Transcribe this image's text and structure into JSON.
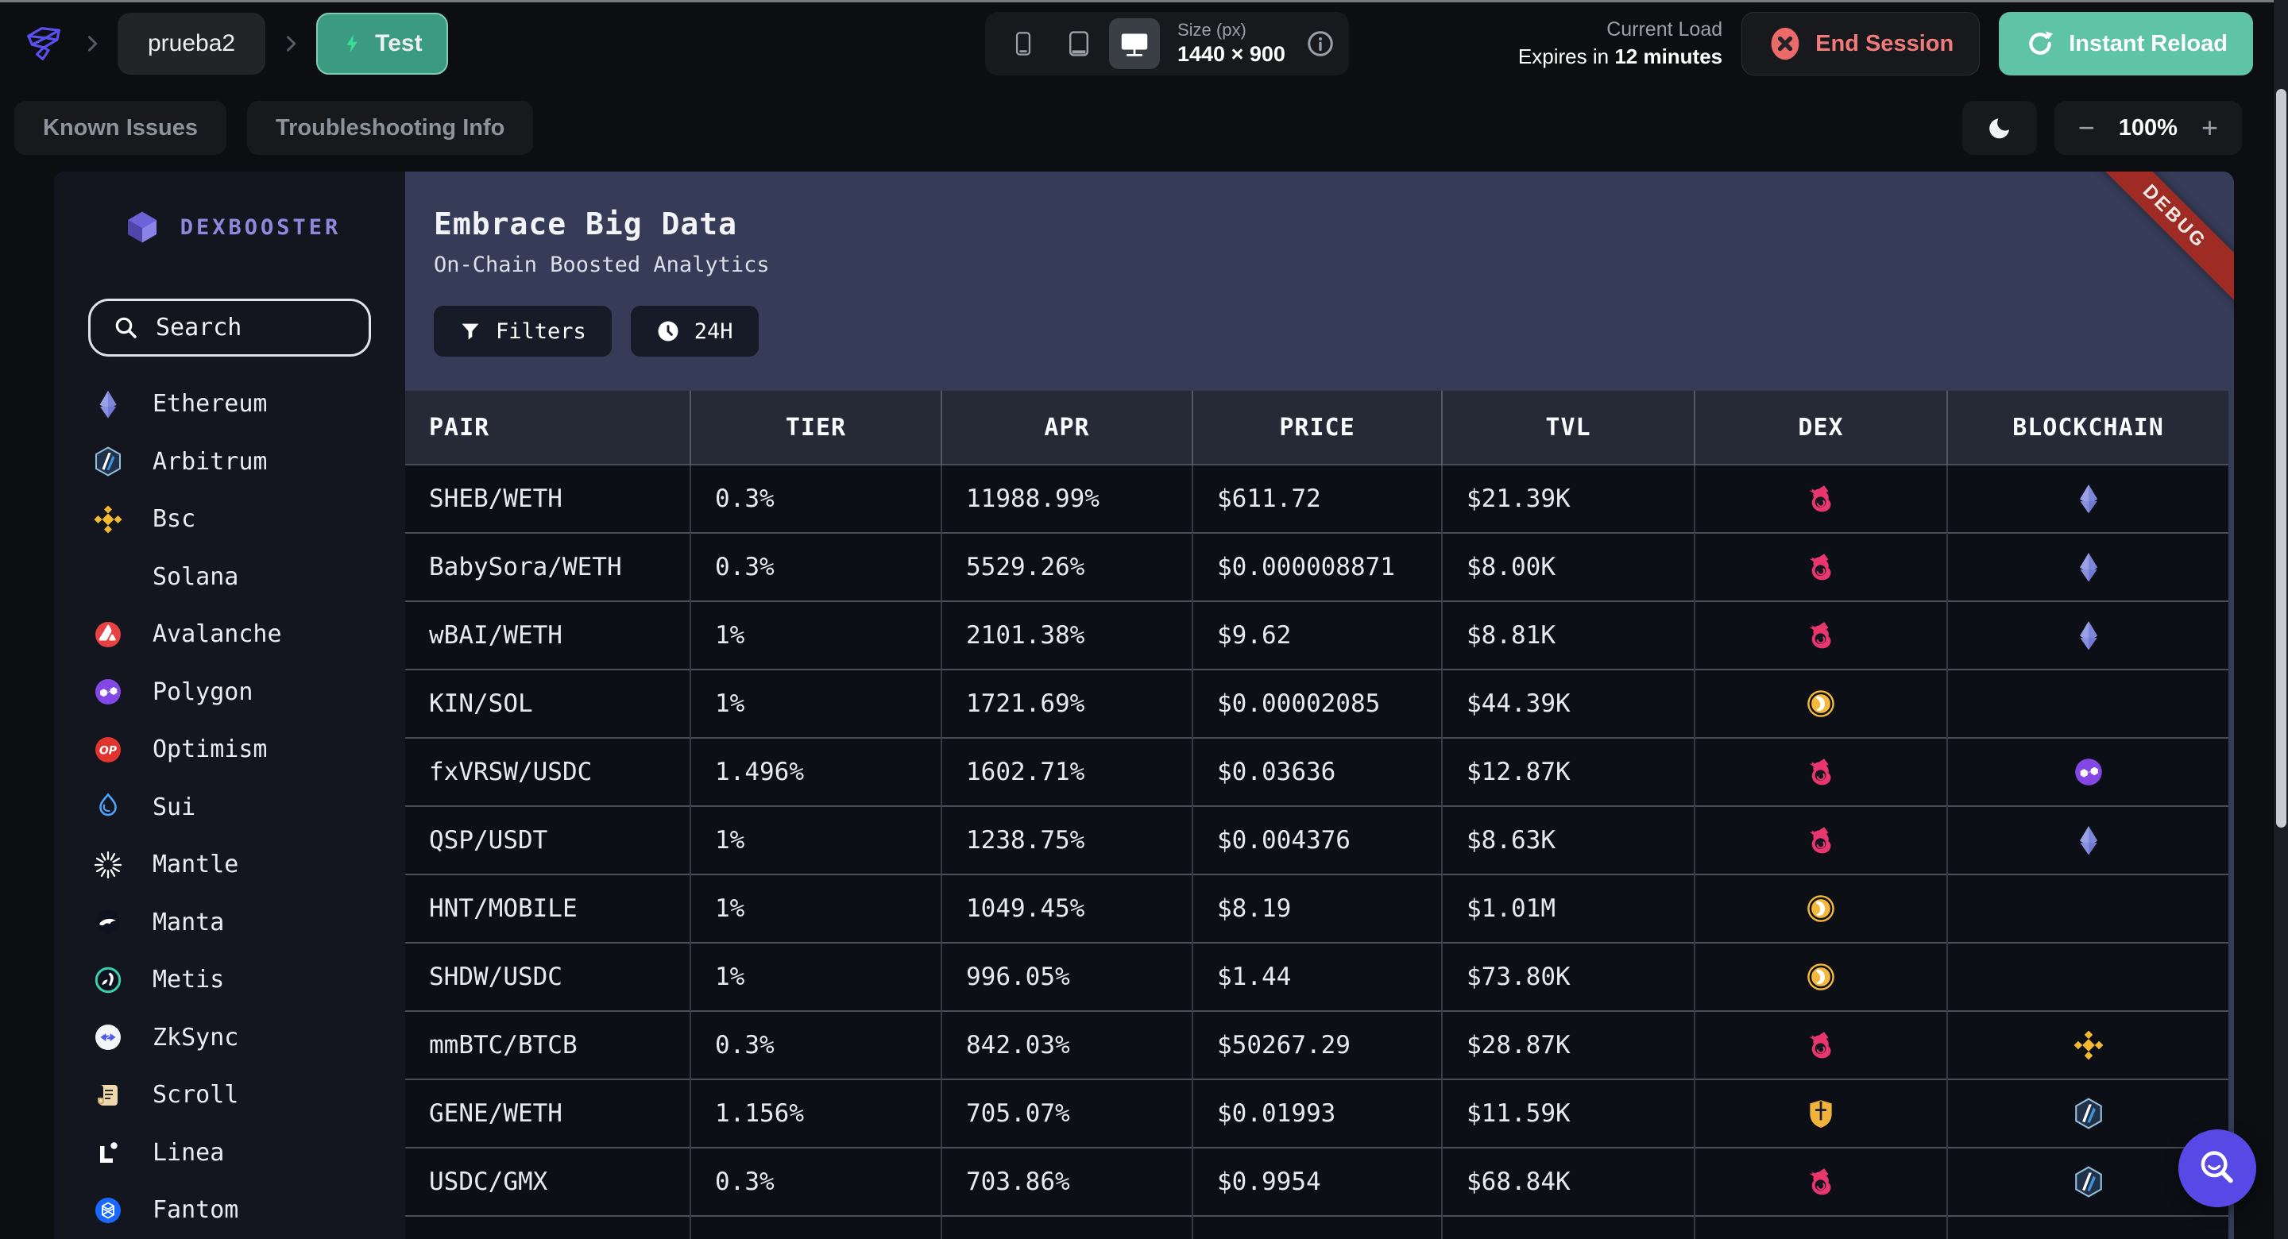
{
  "top_bar": {
    "breadcrumb": {
      "project": "prueba2",
      "environment": "Test"
    },
    "device_toolbar": {
      "size_label": "Size (px)",
      "size_value": "1440 × 900"
    },
    "session": {
      "load_label": "Current Load",
      "expires_prefix": "Expires in ",
      "expires_value": "12 minutes",
      "end_session_label": "End Session",
      "instant_reload_label": "Instant Reload"
    }
  },
  "toolbar": {
    "known_issues_label": "Known Issues",
    "troubleshooting_label": "Troubleshooting Info",
    "zoom_out": "−",
    "zoom_level": "100%",
    "zoom_in": "+"
  },
  "app": {
    "brand": "DEXBOOSTER",
    "search_placeholder": "Search",
    "debug_ribbon": "DEBUG",
    "header": {
      "title": "Embrace Big Data",
      "subtitle": "On-Chain Boosted Analytics",
      "filters_label": "Filters",
      "timeframe_label": "24H"
    },
    "chains": [
      {
        "name": "Ethereum",
        "icon": "ethereum"
      },
      {
        "name": "Arbitrum",
        "icon": "arbitrum"
      },
      {
        "name": "Bsc",
        "icon": "bsc"
      },
      {
        "name": "Solana",
        "icon": "solana"
      },
      {
        "name": "Avalanche",
        "icon": "avalanche"
      },
      {
        "name": "Polygon",
        "icon": "polygon"
      },
      {
        "name": "Optimism",
        "icon": "optimism"
      },
      {
        "name": "Sui",
        "icon": "sui"
      },
      {
        "name": "Mantle",
        "icon": "mantle"
      },
      {
        "name": "Manta",
        "icon": "manta"
      },
      {
        "name": "Metis",
        "icon": "metis"
      },
      {
        "name": "ZkSync",
        "icon": "zksync"
      },
      {
        "name": "Scroll",
        "icon": "scroll"
      },
      {
        "name": "Linea",
        "icon": "linea"
      },
      {
        "name": "Fantom",
        "icon": "fantom"
      }
    ],
    "table": {
      "columns": [
        "PAIR",
        "TIER",
        "APR",
        "PRICE",
        "TVL",
        "DEX",
        "BLOCKCHAIN"
      ],
      "rows": [
        {
          "pair": "SHEB/WETH",
          "tier": "0.3%",
          "apr": "11988.99%",
          "price": "$611.72",
          "tvl": "$21.39K",
          "dex": "uniswap",
          "blockchain": "ethereum"
        },
        {
          "pair": "BabySora/WETH",
          "tier": "0.3%",
          "apr": "5529.26%",
          "price": "$0.000008871",
          "tvl": "$8.00K",
          "dex": "uniswap",
          "blockchain": "ethereum"
        },
        {
          "pair": "wBAI/WETH",
          "tier": "1%",
          "apr": "2101.38%",
          "price": "$9.62",
          "tvl": "$8.81K",
          "dex": "uniswap",
          "blockchain": "ethereum"
        },
        {
          "pair": "KIN/SOL",
          "tier": "1%",
          "apr": "1721.69%",
          "price": "$0.00002085",
          "tvl": "$44.39K",
          "dex": "orca",
          "blockchain": "solana"
        },
        {
          "pair": "fxVRSW/USDC",
          "tier": "1.496%",
          "apr": "1602.71%",
          "price": "$0.03636",
          "tvl": "$12.87K",
          "dex": "uniswap",
          "blockchain": "polygon"
        },
        {
          "pair": "QSP/USDT",
          "tier": "1%",
          "apr": "1238.75%",
          "price": "$0.004376",
          "tvl": "$8.63K",
          "dex": "uniswap",
          "blockchain": "ethereum"
        },
        {
          "pair": "HNT/MOBILE",
          "tier": "1%",
          "apr": "1049.45%",
          "price": "$8.19",
          "tvl": "$1.01M",
          "dex": "orca",
          "blockchain": "solana"
        },
        {
          "pair": "SHDW/USDC",
          "tier": "1%",
          "apr": "996.05%",
          "price": "$1.44",
          "tvl": "$73.80K",
          "dex": "orca",
          "blockchain": "solana"
        },
        {
          "pair": "mmBTC/BTCB",
          "tier": "0.3%",
          "apr": "842.03%",
          "price": "$50267.29",
          "tvl": "$28.87K",
          "dex": "uniswap",
          "blockchain": "bsc"
        },
        {
          "pair": "GENE/WETH",
          "tier": "1.156%",
          "apr": "705.07%",
          "price": "$0.01993",
          "tvl": "$11.59K",
          "dex": "camelot",
          "blockchain": "arbitrum"
        },
        {
          "pair": "USDC/GMX",
          "tier": "0.3%",
          "apr": "703.86%",
          "price": "$0.9954",
          "tvl": "$68.84K",
          "dex": "uniswap",
          "blockchain": "arbitrum"
        }
      ]
    }
  },
  "colors": {
    "accent_teal": "#5fc3a5",
    "accent_red": "#ef7b7b",
    "uniswap_pink": "#e8366f",
    "orca_gold": "#f4b93c",
    "debug_ribbon_red": "#9e2b24",
    "fab_indigo": "#5849e6",
    "header_navy": "#363b58",
    "table_row_bg": "#0d0f16",
    "sidebar_bg": "#14161f"
  }
}
